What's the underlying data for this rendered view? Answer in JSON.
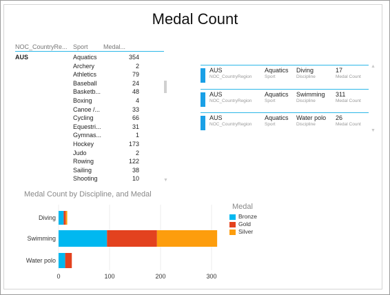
{
  "title": "Medal Count",
  "table": {
    "headers": [
      "NOC_CountryRe...",
      "Sport",
      "Medal..."
    ],
    "country": "AUS",
    "rows": [
      {
        "sport": "Aquatics",
        "medals": "354"
      },
      {
        "sport": "Archery",
        "medals": "2"
      },
      {
        "sport": "Athletics",
        "medals": "79"
      },
      {
        "sport": "Baseball",
        "medals": "24"
      },
      {
        "sport": "Basketb...",
        "medals": "48"
      },
      {
        "sport": "Boxing",
        "medals": "4"
      },
      {
        "sport": "Canoe /...",
        "medals": "33"
      },
      {
        "sport": "Cycling",
        "medals": "66"
      },
      {
        "sport": "Equestri...",
        "medals": "31"
      },
      {
        "sport": "Gymnas...",
        "medals": "1"
      },
      {
        "sport": "Hockey",
        "medals": "173"
      },
      {
        "sport": "Judo",
        "medals": "2"
      },
      {
        "sport": "Rowing",
        "medals": "122"
      },
      {
        "sport": "Sailing",
        "medals": "38"
      },
      {
        "sport": "Shooting",
        "medals": "10"
      }
    ]
  },
  "cards": [
    {
      "country": "AUS",
      "country_label": "NOC_CountryRegion",
      "sport": "Aquatics",
      "sport_label": "Sport",
      "discipline": "Diving",
      "discipline_label": "Discipline",
      "count": "17",
      "count_label": "Medal Count"
    },
    {
      "country": "AUS",
      "country_label": "NOC_CountryRegion",
      "sport": "Aquatics",
      "sport_label": "Sport",
      "discipline": "Swimming",
      "discipline_label": "Discipline",
      "count": "311",
      "count_label": "Medal Count"
    },
    {
      "country": "AUS",
      "country_label": "NOC_CountryRegion",
      "sport": "Aquatics",
      "sport_label": "Sport",
      "discipline": "Water polo",
      "discipline_label": "Discipline",
      "count": "26",
      "count_label": "Medal Count"
    }
  ],
  "chart_data": {
    "type": "bar",
    "orientation": "horizontal",
    "stacked": true,
    "title": "Medal Count by Discipline, and Medal",
    "categories": [
      "Diving",
      "Swimming",
      "Water polo"
    ],
    "series": [
      {
        "name": "Bronze",
        "color": "#01b8f0",
        "values": [
          10,
          95,
          13
        ]
      },
      {
        "name": "Gold",
        "color": "#e3421f",
        "values": [
          4,
          98,
          13
        ]
      },
      {
        "name": "Silver",
        "color": "#fd9d0d",
        "values": [
          3,
          118,
          0
        ]
      }
    ],
    "xlim": [
      0,
      320
    ],
    "xticks": [
      "0",
      "100",
      "200",
      "300"
    ],
    "legend_title": "Medal",
    "legend_position": "right",
    "grid": true
  }
}
